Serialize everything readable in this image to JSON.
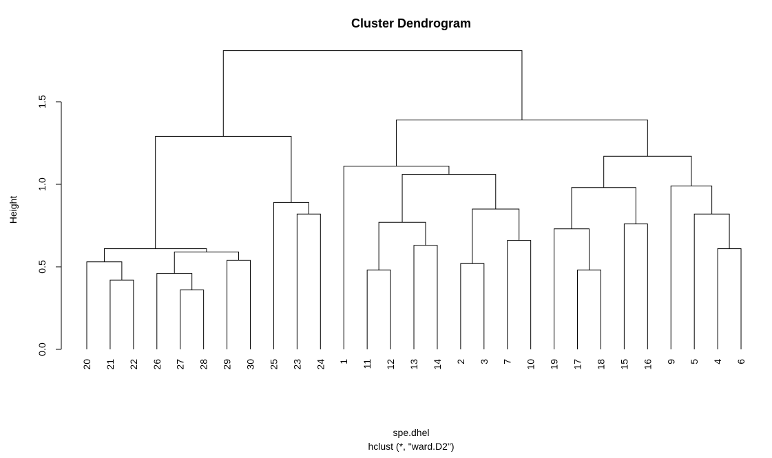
{
  "chart_data": {
    "type": "dendrogram",
    "title": "Cluster Dendrogram",
    "ylabel": "Height",
    "xlabel": "spe.dhel",
    "sub": "hclust (*, \"ward.D2\")",
    "ylim": [
      0,
      1.81
    ],
    "yticks": [
      0.0,
      0.5,
      1.0,
      1.5
    ],
    "ytick_labels": [
      "0.0",
      "0.5",
      "1.0",
      "1.5"
    ],
    "leaves": [
      "20",
      "21",
      "22",
      "26",
      "27",
      "28",
      "29",
      "30",
      "25",
      "23",
      "24",
      "1",
      "11",
      "12",
      "13",
      "14",
      "2",
      "3",
      "7",
      "10",
      "19",
      "17",
      "18",
      "15",
      "16",
      "9",
      "5",
      "4",
      "6"
    ],
    "merges": [
      {
        "id": "m1",
        "left": "21",
        "right": "22",
        "height": 0.42
      },
      {
        "id": "m2",
        "left": "20",
        "right": "m1",
        "height": 0.53
      },
      {
        "id": "m3",
        "left": "27",
        "right": "28",
        "height": 0.36
      },
      {
        "id": "m4",
        "left": "26",
        "right": "m3",
        "height": 0.46
      },
      {
        "id": "m5",
        "left": "29",
        "right": "30",
        "height": 0.54
      },
      {
        "id": "m6",
        "left": "m4",
        "right": "m5",
        "height": 0.59
      },
      {
        "id": "m7",
        "left": "m2",
        "right": "m6",
        "height": 0.61
      },
      {
        "id": "m8",
        "left": "23",
        "right": "24",
        "height": 0.82
      },
      {
        "id": "m9",
        "left": "25",
        "right": "m8",
        "height": 0.89
      },
      {
        "id": "m10",
        "left": "m7",
        "right": "m9",
        "height": 1.29
      },
      {
        "id": "m11",
        "left": "11",
        "right": "12",
        "height": 0.48
      },
      {
        "id": "m12",
        "left": "13",
        "right": "14",
        "height": 0.63
      },
      {
        "id": "m13",
        "left": "m11",
        "right": "m12",
        "height": 0.77
      },
      {
        "id": "m14",
        "left": "2",
        "right": "3",
        "height": 0.52
      },
      {
        "id": "m15",
        "left": "7",
        "right": "10",
        "height": 0.66
      },
      {
        "id": "m16",
        "left": "m14",
        "right": "m15",
        "height": 0.85
      },
      {
        "id": "m17",
        "left": "m13",
        "right": "m16",
        "height": 1.06
      },
      {
        "id": "m18",
        "left": "1",
        "right": "m17",
        "height": 1.11
      },
      {
        "id": "m19",
        "left": "17",
        "right": "18",
        "height": 0.48
      },
      {
        "id": "m20",
        "left": "19",
        "right": "m19",
        "height": 0.73
      },
      {
        "id": "m21",
        "left": "15",
        "right": "16",
        "height": 0.76
      },
      {
        "id": "m22",
        "left": "m20",
        "right": "m21",
        "height": 0.98
      },
      {
        "id": "m23",
        "left": "4",
        "right": "6",
        "height": 0.61
      },
      {
        "id": "m24",
        "left": "5",
        "right": "m23",
        "height": 0.82
      },
      {
        "id": "m25",
        "left": "9",
        "right": "m24",
        "height": 0.99
      },
      {
        "id": "m26",
        "left": "m22",
        "right": "m25",
        "height": 1.17
      },
      {
        "id": "m27",
        "left": "m18",
        "right": "m26",
        "height": 1.39
      },
      {
        "id": "m28",
        "left": "m10",
        "right": "m27",
        "height": 1.81
      }
    ]
  }
}
